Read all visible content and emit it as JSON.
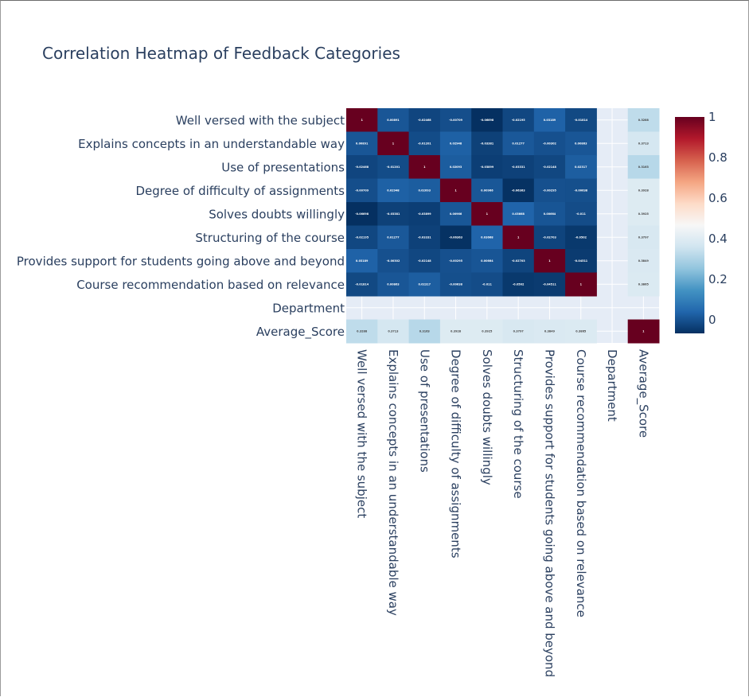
{
  "chart_data": {
    "type": "heatmap",
    "title": "Correlation Heatmap of Feedback Categories",
    "x_labels": [
      "Well versed with the subject",
      "Explains concepts in an understandable way",
      "Use of presentations",
      "Degree of difficulty of assignments",
      "Solves doubts willingly",
      "Structuring of the course",
      "Provides support for students going above and beyond",
      "Course recommendation based on relevance",
      "Department",
      "Average_Score"
    ],
    "y_labels": [
      "Well versed with the subject",
      "Explains concepts in an understandable way",
      "Use of presentations",
      "Degree of difficulty of assignments",
      "Solves doubts willingly",
      "Structuring of the course",
      "Provides support for students going above and beyond",
      "Course recommendation based on relevance",
      "Department",
      "Average_Score"
    ],
    "z": [
      [
        1,
        0.00891,
        -0.02468,
        -0.00709,
        -0.06698,
        -0.02195,
        0.03189,
        -0.01814,
        null,
        0.3288
      ],
      [
        0.00891,
        1,
        -0.01201,
        0.02948,
        -0.03381,
        0.01277,
        -0.00302,
        0.00863,
        null,
        0.3713
      ],
      [
        -0.02468,
        -0.01201,
        1,
        0.02093,
        -0.03899,
        -0.03331,
        -0.02148,
        0.02317,
        null,
        0.3163
      ],
      [
        -0.00709,
        0.02948,
        0.02093,
        1,
        0.00966,
        -0.06363,
        -0.00295,
        -0.00638,
        null,
        0.3928
      ],
      [
        -0.06698,
        -0.03381,
        -0.03899,
        0.00966,
        1,
        0.03668,
        0.00664,
        -0.011,
        null,
        0.3925
      ],
      [
        -0.02195,
        0.01277,
        -0.03331,
        -0.06363,
        0.03668,
        1,
        -0.02703,
        -0.0502,
        null,
        0.3797
      ],
      [
        0.03189,
        -0.00302,
        -0.02148,
        -0.00295,
        0.00664,
        -0.02703,
        1,
        -0.04511,
        null,
        0.3849
      ],
      [
        -0.01814,
        0.00863,
        0.02317,
        -0.00638,
        -0.011,
        -0.0502,
        -0.04511,
        1,
        null,
        0.3865
      ],
      [
        null,
        null,
        null,
        null,
        null,
        null,
        null,
        null,
        null,
        null
      ],
      [
        0.3288,
        0.3713,
        0.3163,
        0.3928,
        0.3925,
        0.3797,
        0.3849,
        0.3865,
        null,
        1
      ]
    ],
    "cell_text": [
      [
        "1",
        "0.00891",
        "-0.02468",
        "-0.00709",
        "-0.06698",
        "-0.02195",
        "0.03189",
        "-0.01814",
        "",
        "0.3288"
      ],
      [
        "0.00891",
        "1",
        "-0.01201",
        "0.02948",
        "-0.03381",
        "0.01277",
        "-0.00302",
        "0.00863",
        "",
        "0.3713"
      ],
      [
        "-0.02468",
        "-0.01201",
        "1",
        "0.02093",
        "-0.03899",
        "-0.03331",
        "-0.02148",
        "0.02317",
        "",
        "0.3163"
      ],
      [
        "-0.00709",
        "0.02948",
        "0.02093",
        "1",
        "0.00966",
        "-0.06363",
        "-0.00295",
        "-0.00638",
        "",
        "0.3928"
      ],
      [
        "-0.06698",
        "-0.03381",
        "-0.03899",
        "0.00966",
        "1",
        "0.03668",
        "0.00664",
        "-0.011",
        "",
        "0.3925"
      ],
      [
        "-0.02195",
        "0.01277",
        "-0.03331",
        "-0.06363",
        "0.03668",
        "1",
        "-0.02703",
        "-0.0502",
        "",
        "0.3797"
      ],
      [
        "0.03189",
        "-0.00302",
        "-0.02148",
        "-0.00295",
        "0.00664",
        "-0.02703",
        "1",
        "-0.04511",
        "",
        "0.3849"
      ],
      [
        "-0.01814",
        "0.00863",
        "0.02317",
        "-0.00638",
        "-0.011",
        "-0.0502",
        "-0.04511",
        "1",
        "",
        "0.3865"
      ],
      [
        "",
        "",
        "",
        "",
        "",
        "",
        "",
        "",
        "",
        ""
      ],
      [
        "0.3288",
        "0.3713",
        "0.3163",
        "0.3928",
        "0.3925",
        "0.3797",
        "0.3849",
        "0.3865",
        "",
        "1"
      ]
    ],
    "colorscale": "RdBu_r",
    "zmin": -0.067,
    "zmax": 1,
    "colorbar_ticks": [
      "0",
      "0.2",
      "0.4",
      "0.6",
      "0.8",
      "1"
    ],
    "colorbar_tick_values": [
      0,
      0.2,
      0.4,
      0.6,
      0.8,
      1
    ],
    "plot_background": "#e5ecf6",
    "colors": {
      "stops": [
        "#053061",
        "#2166ac",
        "#4393c3",
        "#92c5de",
        "#d1e5f0",
        "#f7f7f7",
        "#fddbc7",
        "#f4a582",
        "#d6604d",
        "#b2182b",
        "#67001f"
      ],
      "text": "#2a3f5f"
    }
  }
}
